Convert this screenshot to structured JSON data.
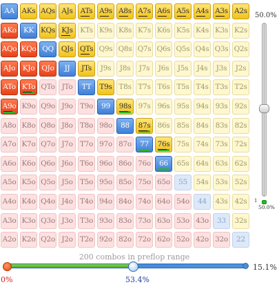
{
  "ranks": [
    "A",
    "K",
    "Q",
    "J",
    "T",
    "9",
    "8",
    "7",
    "6",
    "5",
    "4",
    "3",
    "2"
  ],
  "selected": [
    "AA",
    "AKs",
    "AQs",
    "AJs",
    "ATs",
    "A9s",
    "A8s",
    "A7s",
    "A6s",
    "A5s",
    "A4s",
    "A3s",
    "A2s",
    "AKo",
    "KK",
    "KQs",
    "KJs",
    "AQo",
    "KQo",
    "QQ",
    "QJs",
    "QTs",
    "AJo",
    "KJo",
    "QJo",
    "JJ",
    "JTs",
    "ATo",
    "KTo",
    "TT",
    "T9s",
    "A9o",
    "99",
    "98s",
    "88",
    "87s",
    "77",
    "76s",
    "66"
  ],
  "underlined": [
    "ATs",
    "A9s",
    "A8s",
    "A7s",
    "A6s",
    "A5s",
    "A4s",
    "A3s",
    "KJs",
    "QTs",
    "KTo",
    "A9o",
    "98s",
    "87s",
    "76s"
  ],
  "partial": [
    "KTo",
    "A9o",
    "98s",
    "87s",
    "77",
    "76s",
    "66"
  ],
  "colors": {
    "pair_selected": "#5b96e3",
    "suited_selected": "#f7cf3a",
    "offsuit_selected": "#f25a2c",
    "track_green": "#2bb32b",
    "track_blue": "#3a86d8"
  },
  "right_slider": {
    "top_label": "50.0%",
    "min_label": "1",
    "value_label": "50.0%",
    "value_fraction": 0.5
  },
  "bottom": {
    "combos_text": "200 combos in preflop range",
    "left_label": "0%",
    "mid_label": "53.4%",
    "right_label": "15.1%",
    "mid_fraction": 0.534
  }
}
